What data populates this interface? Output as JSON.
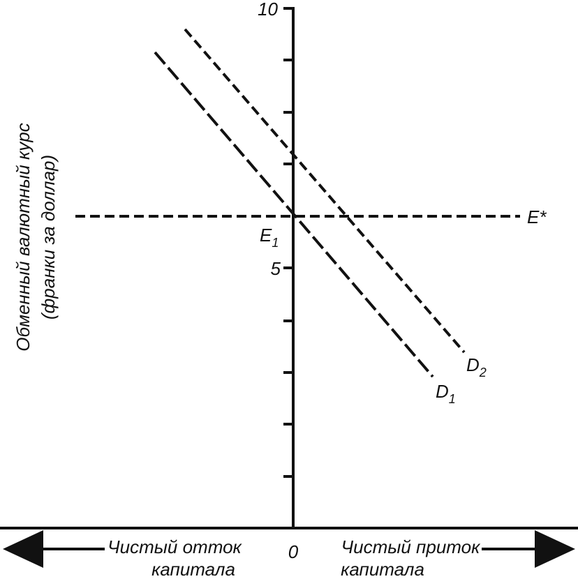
{
  "y_axis": {
    "label_lines": [
      "Обменный валютный курс",
      "(франки за доллар)"
    ],
    "tick_labels": [
      "10",
      "5"
    ]
  },
  "x_axis": {
    "origin_label": "0",
    "left_label_lines": [
      "Чистый отток",
      "капитала"
    ],
    "right_label_lines": [
      "Чистый приток",
      "капитала"
    ]
  },
  "curves": {
    "world_rate": {
      "name": "E*"
    },
    "equilibrium": {
      "name": "E",
      "subscript": "1"
    },
    "demand_1": {
      "name": "D",
      "subscript": "1"
    },
    "demand_2": {
      "name": "D",
      "subscript": "2"
    }
  }
}
